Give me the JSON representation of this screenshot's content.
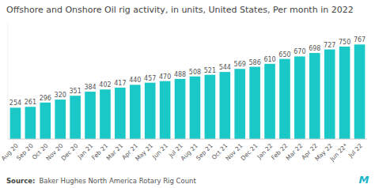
{
  "chart_data": {
    "type": "bar",
    "title": "Offshore and Onshore Oil rig activity, in units, United States, Per month in 2022",
    "categories": [
      "Aug 20",
      "Sep 20",
      "Oct 20",
      "Nov 20",
      "Dec 20",
      "Jan 21",
      "Feb 21",
      "Mar 21",
      "Apr 21",
      "May 21",
      "Jun 21",
      "Jul 21",
      "Aug 21",
      "Sep 21",
      "Oct 21",
      "Nov 21",
      "Dec 21",
      "Jan 22",
      "Feb 22",
      "Mar 22",
      "Apr 22",
      "May 22",
      "Jun 22*",
      "Jul 22"
    ],
    "values": [
      254,
      261,
      296,
      320,
      351,
      384,
      402,
      417,
      440,
      457,
      470,
      488,
      508,
      521,
      544,
      569,
      586,
      610,
      650,
      670,
      698,
      727,
      750,
      767
    ],
    "color": "#1ac8c8",
    "ylim": [
      0,
      935.74
    ],
    "grid": false,
    "data_labels": true,
    "tick_labels": "x",
    "annotations": [
      {
        "text": "Source:"
      },
      {
        "text": "Baker Hughes North America Rotary Rig Count"
      },
      {
        "text": "M",
        "color": "#1ab5c8"
      }
    ]
  }
}
